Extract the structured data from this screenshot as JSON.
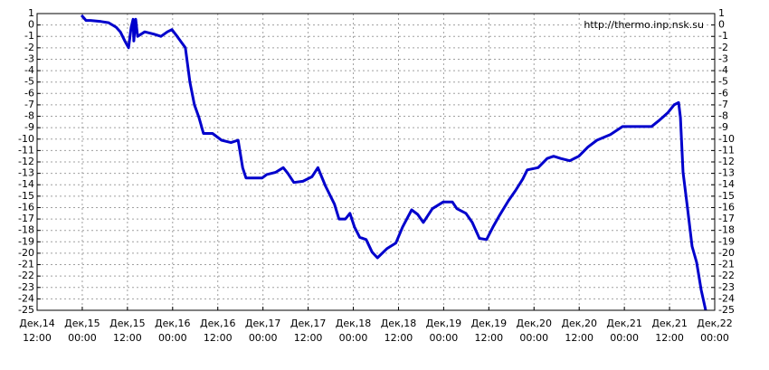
{
  "chart_data": {
    "type": "line",
    "annotation": "http://thermo.inp.nsk.su",
    "xlim": [
      0,
      180
    ],
    "xticks": [
      {
        "value": 0,
        "label": [
          "Дек,14",
          "12:00"
        ]
      },
      {
        "value": 12,
        "label": [
          "Дек,15",
          "00:00"
        ]
      },
      {
        "value": 24,
        "label": [
          "Дек,15",
          "12:00"
        ]
      },
      {
        "value": 36,
        "label": [
          "Дек,16",
          "00:00"
        ]
      },
      {
        "value": 48,
        "label": [
          "Дек,16",
          "12:00"
        ]
      },
      {
        "value": 60,
        "label": [
          "Дек,17",
          "00:00"
        ]
      },
      {
        "value": 72,
        "label": [
          "Дек,17",
          "12:00"
        ]
      },
      {
        "value": 84,
        "label": [
          "Дек,18",
          "00:00"
        ]
      },
      {
        "value": 96,
        "label": [
          "Дек,18",
          "12:00"
        ]
      },
      {
        "value": 108,
        "label": [
          "Дек,19",
          "00:00"
        ]
      },
      {
        "value": 120,
        "label": [
          "Дек,19",
          "12:00"
        ]
      },
      {
        "value": 132,
        "label": [
          "Дек,20",
          "00:00"
        ]
      },
      {
        "value": 144,
        "label": [
          "Дек,20",
          "12:00"
        ]
      },
      {
        "value": 156,
        "label": [
          "Дек,21",
          "00:00"
        ]
      },
      {
        "value": 168,
        "label": [
          "Дек,21",
          "12:00"
        ]
      },
      {
        "value": 180,
        "label": [
          "Дек,22",
          "00:00"
        ]
      }
    ],
    "ylim": [
      -25,
      1
    ],
    "yticks": [
      1,
      0,
      -1,
      -2,
      -3,
      -4,
      -5,
      -6,
      -7,
      -8,
      -9,
      -10,
      -11,
      -12,
      -13,
      -14,
      -15,
      -16,
      -17,
      -18,
      -19,
      -20,
      -21,
      -22,
      -23,
      -24,
      -25
    ],
    "grid": true,
    "series": [
      {
        "color": "#0000cc",
        "x": [
          11.8,
          13,
          14.2,
          17,
          19,
          21,
          22.1,
          23.3,
          24.3,
          25,
          25.5,
          25.7,
          26.2,
          26.7,
          28.6,
          31,
          32.9,
          34.6,
          35.8,
          37.2,
          39.4,
          40.6,
          41.8,
          43,
          44.2,
          46.6,
          49,
          51.5,
          53.4,
          54.6,
          55.5,
          59.8,
          61,
          63.4,
          65.4,
          66.6,
          68.2,
          70.6,
          73,
          74.6,
          76.6,
          79,
          80.2,
          81.9,
          83.1,
          84.3,
          85.7,
          87.4,
          89,
          90.4,
          92.9,
          95.3,
          97.1,
          99.5,
          101.1,
          102.6,
          105,
          107.9,
          110.3,
          111.5,
          113.9,
          115.6,
          117.5,
          119.4,
          121.1,
          122.8,
          125.2,
          127.1,
          129,
          130.2,
          133.1,
          135.5,
          137.2,
          139.1,
          141.5,
          143.9,
          146.3,
          148.7,
          152.3,
          155.5,
          158.4,
          161.2,
          163.2,
          165.1,
          167.5,
          169.2,
          170.4,
          170.9,
          171.6,
          172.8,
          174,
          175.2,
          176.4,
          177.6
        ],
        "values": [
          0.85,
          0.4,
          0.4,
          0.3,
          0.2,
          -0.2,
          -0.6,
          -1.4,
          -2,
          -0.2,
          0.5,
          -1.4,
          0.5,
          -1,
          -0.6,
          -0.8,
          -1,
          -0.6,
          -0.4,
          -1,
          -2,
          -5,
          -7,
          -8.1,
          -9.5,
          -9.5,
          -10.1,
          -10.3,
          -10.1,
          -12.5,
          -13.4,
          -13.4,
          -13.1,
          -12.9,
          -12.5,
          -13,
          -13.8,
          -13.7,
          -13.3,
          -12.5,
          -14.1,
          -15.7,
          -17,
          -17,
          -16.5,
          -17.7,
          -18.6,
          -18.8,
          -19.9,
          -20.4,
          -19.6,
          -19.1,
          -17.7,
          -16.2,
          -16.6,
          -17.3,
          -16.1,
          -15.5,
          -15.5,
          -16.1,
          -16.5,
          -17.3,
          -18.7,
          -18.8,
          -17.7,
          -16.7,
          -15.4,
          -14.5,
          -13.5,
          -12.7,
          -12.5,
          -11.7,
          -11.5,
          -11.7,
          -11.9,
          -11.5,
          -10.7,
          -10.1,
          -9.6,
          -8.9,
          -8.9,
          -8.9,
          -8.9,
          -8.4,
          -7.7,
          -7,
          -6.8,
          -8.1,
          -12.9,
          -16.1,
          -19.4,
          -20.8,
          -23.2,
          -25
        ]
      }
    ]
  }
}
